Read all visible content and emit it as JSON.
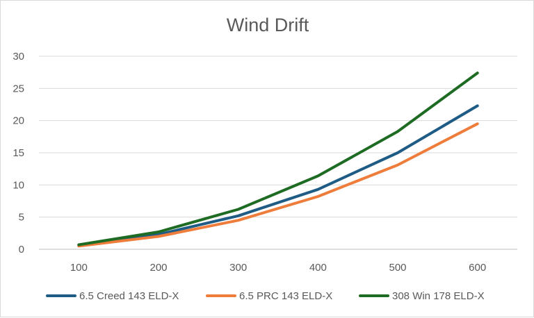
{
  "chart_data": {
    "type": "line",
    "title": "Wind Drift",
    "xlabel": "",
    "ylabel": "",
    "categories": [
      "100",
      "200",
      "300",
      "400",
      "500",
      "600"
    ],
    "ylim": [
      0,
      30
    ],
    "yticks": [
      0,
      5,
      10,
      15,
      20,
      25,
      30
    ],
    "grid": true,
    "legend_position": "bottom",
    "series": [
      {
        "name": "6.5 Creed 143 ELD-X",
        "color": "#1f5c85",
        "values": [
          0.6,
          2.3,
          5.2,
          9.3,
          15.0,
          22.3
        ]
      },
      {
        "name": "6.5 PRC 143 ELD-X",
        "color": "#ee7d3b",
        "values": [
          0.5,
          2.0,
          4.5,
          8.2,
          13.1,
          19.5
        ]
      },
      {
        "name": "308 Win 178 ELD-X",
        "color": "#1e6b23",
        "values": [
          0.7,
          2.7,
          6.2,
          11.4,
          18.3,
          27.4
        ]
      }
    ]
  }
}
